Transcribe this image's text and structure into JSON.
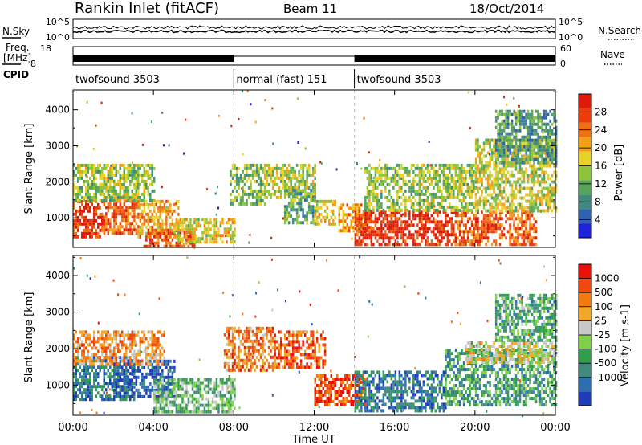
{
  "header": {
    "title": "Rankin Inlet (fitACF)",
    "beam": "Beam 11",
    "date": "18/Oct/2014"
  },
  "noise_panel": {
    "left_label": "N.Sky",
    "right_label": "N.Search",
    "ticks_left": [
      "10^5",
      "10^0"
    ],
    "ticks_right": [
      "10^5",
      "10^0"
    ]
  },
  "freq_panel": {
    "left_label_1": "Freq.",
    "left_label_2": "[MHz]",
    "right_label": "Nave",
    "ticks_left": [
      "18",
      "8"
    ],
    "ticks_right": [
      "60",
      "0"
    ]
  },
  "cpid_panel": {
    "label": "CPID",
    "segments": [
      {
        "start_hour": 0,
        "end_hour": 8,
        "text": "twofsound 3503"
      },
      {
        "start_hour": 8,
        "end_hour": 14,
        "text": "normal (fast) 151"
      },
      {
        "start_hour": 14,
        "end_hour": 24,
        "text": "twofsound 3503"
      }
    ]
  },
  "x_axis": {
    "title": "Time UT",
    "tick_hours": [
      0,
      4,
      8,
      12,
      16,
      20,
      24
    ],
    "tick_labels": [
      "00:00",
      "04:00",
      "08:00",
      "12:00",
      "16:00",
      "20:00",
      "00:00"
    ],
    "range_hours": [
      0,
      24
    ]
  },
  "chart_data": [
    {
      "type": "heatmap",
      "panel": "power",
      "ylabel": "Slant Range [km]",
      "y_ticks": [
        1000,
        2000,
        3000,
        4000
      ],
      "ylim": [
        180,
        4550
      ],
      "colorbar": {
        "title": "Power [dB]",
        "range": [
          0,
          32
        ],
        "tick_values": [
          4,
          8,
          12,
          16,
          20,
          24,
          28
        ],
        "tick_labels": [
          "4",
          "8",
          "12",
          "16",
          "20",
          "24",
          "28"
        ],
        "colors": [
          "#1e22d8",
          "#2f63b0",
          "#3f8a7c",
          "#55a45a",
          "#8fc43a",
          "#e8d22a",
          "#f2a018",
          "#f07010",
          "#ec3c0c",
          "#e01a08"
        ]
      },
      "regions": [
        {
          "t0": 0.0,
          "t1": 1.5,
          "r0": 500,
          "r1": 1500,
          "level": 0.88
        },
        {
          "t0": 1.5,
          "t1": 3.2,
          "r0": 600,
          "r1": 1600,
          "level": 0.78
        },
        {
          "t0": 3.2,
          "t1": 5.2,
          "r0": 500,
          "r1": 1500,
          "level": 0.65
        },
        {
          "t0": 3.5,
          "t1": 6.0,
          "r0": 200,
          "r1": 700,
          "level": 0.82
        },
        {
          "t0": 5.0,
          "t1": 8.0,
          "r0": 300,
          "r1": 1000,
          "level": 0.55
        },
        {
          "t0": 0.0,
          "t1": 4.0,
          "r0": 1500,
          "r1": 2500,
          "level": 0.45
        },
        {
          "t0": 7.8,
          "t1": 9.5,
          "r0": 1400,
          "r1": 2500,
          "level": 0.4
        },
        {
          "t0": 9.5,
          "t1": 12.0,
          "r0": 1600,
          "r1": 2500,
          "level": 0.5
        },
        {
          "t0": 10.5,
          "t1": 12.0,
          "r0": 900,
          "r1": 1800,
          "level": 0.35
        },
        {
          "t0": 12.0,
          "t1": 13.0,
          "r0": 800,
          "r1": 1500,
          "level": 0.55
        },
        {
          "t0": 13.2,
          "t1": 14.8,
          "r0": 600,
          "r1": 1400,
          "level": 0.68
        },
        {
          "t0": 14.0,
          "t1": 19.0,
          "r0": 300,
          "r1": 1200,
          "level": 0.92
        },
        {
          "t0": 19.0,
          "t1": 23.0,
          "r0": 300,
          "r1": 1200,
          "level": 0.8
        },
        {
          "t0": 14.5,
          "t1": 20.0,
          "r0": 1200,
          "r1": 2500,
          "level": 0.45
        },
        {
          "t0": 20.0,
          "t1": 24.0,
          "r0": 1200,
          "r1": 3200,
          "level": 0.5
        },
        {
          "t0": 21.0,
          "t1": 24.0,
          "r0": 2500,
          "r1": 4000,
          "level": 0.3
        }
      ]
    },
    {
      "type": "heatmap",
      "panel": "velocity",
      "ylabel": "Slant Range [km]",
      "y_ticks": [
        1000,
        2000,
        3000,
        4000
      ],
      "ylim": [
        180,
        4550
      ],
      "colorbar": {
        "title": "Velocity [m s-1]",
        "tick_labels": [
          "-1000",
          "-500",
          "-100",
          "-25",
          "25",
          "100",
          "500",
          "1000"
        ],
        "colors": [
          "#e8120a",
          "#f04810",
          "#f27a10",
          "#f0a828",
          "#c8c8c8",
          "#7ed04a",
          "#2fa04a",
          "#3f8a7c",
          "#2d6eb0",
          "#1e3cb8"
        ]
      },
      "regions": [
        {
          "t0": 0.0,
          "t1": 3.0,
          "r0": 600,
          "r1": 1800,
          "level": 0.8
        },
        {
          "t0": 2.0,
          "t1": 5.0,
          "r0": 700,
          "r1": 1700,
          "level": 0.9
        },
        {
          "t0": 0.0,
          "t1": 4.5,
          "r0": 1600,
          "r1": 2500,
          "level": 0.3
        },
        {
          "t0": 4.0,
          "t1": 8.0,
          "r0": 300,
          "r1": 1200,
          "level": 0.6
        },
        {
          "t0": 7.5,
          "t1": 10.0,
          "r0": 1400,
          "r1": 2600,
          "level": 0.25
        },
        {
          "t0": 10.0,
          "t1": 12.5,
          "r0": 1500,
          "r1": 2500,
          "level": 0.18
        },
        {
          "t0": 12.0,
          "t1": 14.5,
          "r0": 500,
          "r1": 1300,
          "level": 0.15
        },
        {
          "t0": 14.0,
          "t1": 18.5,
          "r0": 300,
          "r1": 1400,
          "level": 0.8
        },
        {
          "t0": 18.5,
          "t1": 24.0,
          "r0": 500,
          "r1": 2000,
          "level": 0.7
        },
        {
          "t0": 19.5,
          "t1": 24.0,
          "r0": 1600,
          "r1": 2200,
          "level": 0.45
        },
        {
          "t0": 21.0,
          "t1": 24.0,
          "r0": 2200,
          "r1": 3500,
          "level": 0.65
        }
      ]
    }
  ]
}
